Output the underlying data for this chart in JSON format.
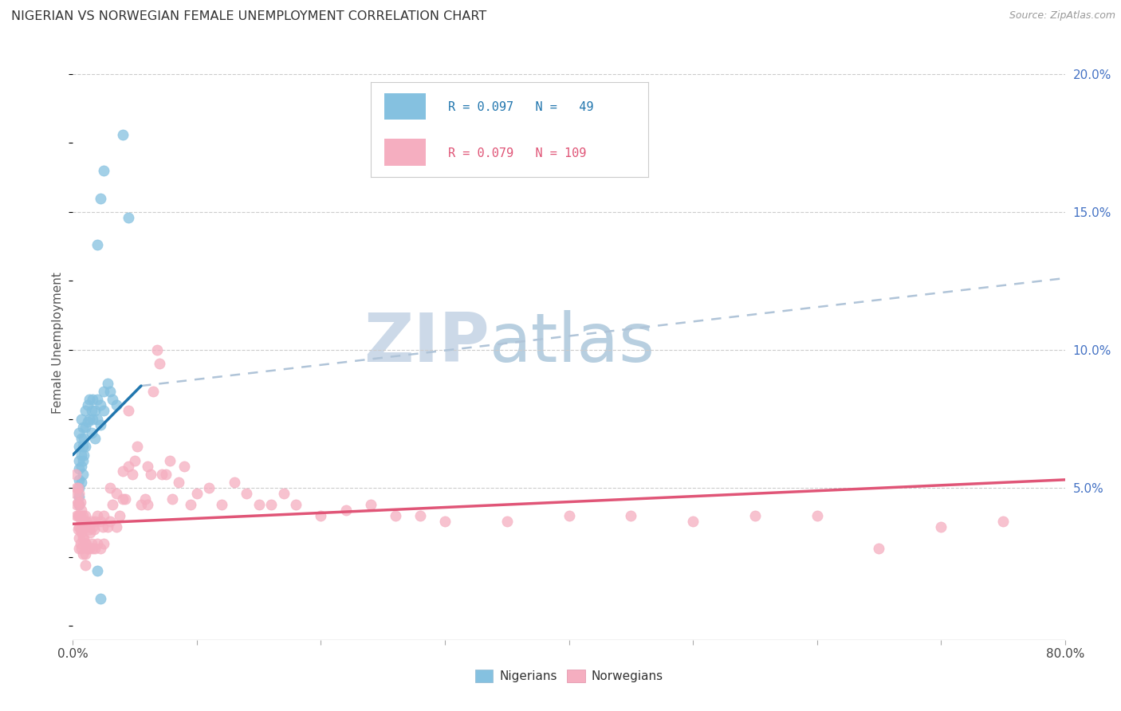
{
  "title": "NIGERIAN VS NORWEGIAN FEMALE UNEMPLOYMENT CORRELATION CHART",
  "source": "Source: ZipAtlas.com",
  "ylabel": "Female Unemployment",
  "y_ticks": [
    0.0,
    0.05,
    0.1,
    0.15,
    0.2
  ],
  "y_tick_labels": [
    "",
    "5.0%",
    "10.0%",
    "15.0%",
    "20.0%"
  ],
  "x_ticks": [
    0.0,
    0.1,
    0.2,
    0.3,
    0.4,
    0.5,
    0.6,
    0.7,
    0.8
  ],
  "legend_nigerians": "Nigerians",
  "legend_norwegians": "Norwegians",
  "nigerian_color": "#85c1e0",
  "norwegian_color": "#f5aec0",
  "nigerian_trend_color": "#2176ae",
  "norwegian_trend_color": "#e05577",
  "dashed_trend_color": "#b0c4d8",
  "background_color": "#ffffff",
  "watermark_color": "#ccd9e8",
  "nigerian_x": [
    0.005,
    0.005,
    0.005,
    0.005,
    0.005,
    0.005,
    0.005,
    0.005,
    0.007,
    0.007,
    0.007,
    0.007,
    0.007,
    0.008,
    0.008,
    0.008,
    0.008,
    0.009,
    0.009,
    0.01,
    0.01,
    0.01,
    0.012,
    0.012,
    0.013,
    0.013,
    0.015,
    0.015,
    0.016,
    0.016,
    0.018,
    0.018,
    0.02,
    0.02,
    0.022,
    0.022,
    0.025,
    0.025,
    0.028,
    0.03,
    0.032,
    0.035,
    0.04,
    0.045,
    0.02,
    0.022,
    0.025,
    0.02,
    0.022
  ],
  "nigerian_y": [
    0.07,
    0.065,
    0.06,
    0.057,
    0.053,
    0.05,
    0.047,
    0.044,
    0.075,
    0.068,
    0.062,
    0.058,
    0.052,
    0.072,
    0.065,
    0.06,
    0.055,
    0.068,
    0.062,
    0.078,
    0.072,
    0.065,
    0.08,
    0.074,
    0.082,
    0.075,
    0.078,
    0.07,
    0.082,
    0.075,
    0.078,
    0.068,
    0.082,
    0.075,
    0.08,
    0.073,
    0.085,
    0.078,
    0.088,
    0.085,
    0.082,
    0.08,
    0.178,
    0.148,
    0.138,
    0.155,
    0.165,
    0.02,
    0.01
  ],
  "norwegian_x": [
    0.002,
    0.002,
    0.003,
    0.003,
    0.003,
    0.004,
    0.004,
    0.004,
    0.004,
    0.005,
    0.005,
    0.005,
    0.005,
    0.005,
    0.005,
    0.006,
    0.006,
    0.006,
    0.006,
    0.007,
    0.007,
    0.007,
    0.007,
    0.008,
    0.008,
    0.008,
    0.008,
    0.009,
    0.009,
    0.01,
    0.01,
    0.01,
    0.01,
    0.01,
    0.011,
    0.011,
    0.012,
    0.012,
    0.013,
    0.013,
    0.014,
    0.015,
    0.015,
    0.016,
    0.016,
    0.017,
    0.018,
    0.018,
    0.02,
    0.02,
    0.022,
    0.022,
    0.024,
    0.025,
    0.025,
    0.028,
    0.03,
    0.03,
    0.032,
    0.035,
    0.035,
    0.038,
    0.04,
    0.04,
    0.042,
    0.045,
    0.045,
    0.048,
    0.05,
    0.052,
    0.055,
    0.058,
    0.06,
    0.06,
    0.063,
    0.065,
    0.068,
    0.07,
    0.072,
    0.075,
    0.078,
    0.08,
    0.085,
    0.09,
    0.095,
    0.1,
    0.11,
    0.12,
    0.13,
    0.14,
    0.15,
    0.16,
    0.17,
    0.18,
    0.2,
    0.22,
    0.24,
    0.26,
    0.28,
    0.3,
    0.35,
    0.4,
    0.45,
    0.5,
    0.55,
    0.6,
    0.65,
    0.7,
    0.75
  ],
  "norwegian_y": [
    0.055,
    0.048,
    0.05,
    0.044,
    0.04,
    0.05,
    0.045,
    0.04,
    0.035,
    0.048,
    0.044,
    0.04,
    0.036,
    0.032,
    0.028,
    0.045,
    0.04,
    0.035,
    0.03,
    0.042,
    0.038,
    0.034,
    0.028,
    0.04,
    0.036,
    0.032,
    0.026,
    0.038,
    0.032,
    0.04,
    0.036,
    0.03,
    0.026,
    0.022,
    0.038,
    0.03,
    0.036,
    0.028,
    0.035,
    0.028,
    0.034,
    0.038,
    0.03,
    0.036,
    0.028,
    0.035,
    0.038,
    0.028,
    0.04,
    0.03,
    0.038,
    0.028,
    0.036,
    0.04,
    0.03,
    0.036,
    0.05,
    0.038,
    0.044,
    0.048,
    0.036,
    0.04,
    0.046,
    0.056,
    0.046,
    0.058,
    0.078,
    0.055,
    0.06,
    0.065,
    0.044,
    0.046,
    0.058,
    0.044,
    0.055,
    0.085,
    0.1,
    0.095,
    0.055,
    0.055,
    0.06,
    0.046,
    0.052,
    0.058,
    0.044,
    0.048,
    0.05,
    0.044,
    0.052,
    0.048,
    0.044,
    0.044,
    0.048,
    0.044,
    0.04,
    0.042,
    0.044,
    0.04,
    0.04,
    0.038,
    0.038,
    0.04,
    0.04,
    0.038,
    0.04,
    0.04,
    0.028,
    0.036,
    0.038
  ],
  "nigerian_trend_x": [
    0.0,
    0.055
  ],
  "nigerian_trend_y": [
    0.062,
    0.087
  ],
  "dashed_trend_x": [
    0.055,
    0.8
  ],
  "dashed_trend_y": [
    0.087,
    0.126
  ],
  "norwegian_trend_x": [
    0.0,
    0.8
  ],
  "norwegian_trend_y": [
    0.037,
    0.053
  ],
  "xlim": [
    0.0,
    0.8
  ],
  "ylim": [
    -0.005,
    0.21
  ]
}
